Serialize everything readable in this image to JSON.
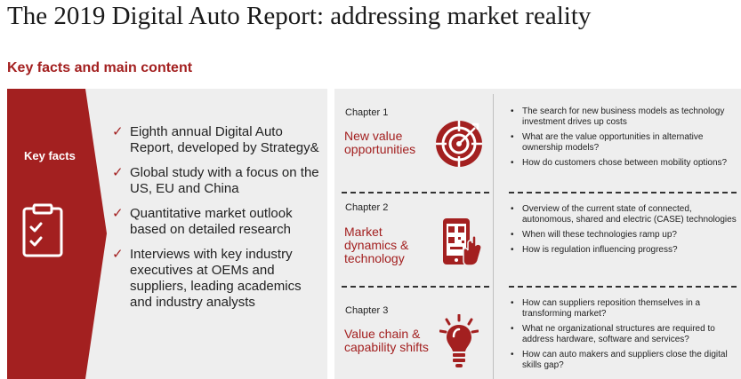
{
  "header": {
    "title": "The 2019 Digital Auto Report: addressing market reality",
    "subtitle": "Key facts and main content"
  },
  "key_facts": {
    "label": "Key facts",
    "icon": "clipboard-check-icon",
    "items": [
      "Eighth annual Digital Auto Report, developed by Strategy&",
      "Global study with a focus on the US, EU and China",
      "Quantitative market outlook based on detailed research",
      "Interviews with key industry executives at OEMs and suppliers, leading academics and industry analysts"
    ],
    "check_glyph": "✓"
  },
  "chapters": [
    {
      "label": "Chapter 1",
      "title": "New value opportunities",
      "icon": "target-icon",
      "bullets": [
        "The search for new business models as technology investment drives up costs",
        "What are the value opportunities in alternative ownership models?",
        "How do customers chose between mobility options?"
      ]
    },
    {
      "label": "Chapter 2",
      "title": "Market dynamics & technology",
      "icon": "smartphone-qr-icon",
      "bullets": [
        "Overview of the current state of connected, autonomous, shared and electric (CASE) technologies",
        "When will these technologies ramp up?",
        "How is regulation influencing progress?"
      ]
    },
    {
      "label": "Chapter 3",
      "title": "Value chain & capability shifts",
      "icon": "lightbulb-icon",
      "bullets": [
        "How can suppliers reposition themselves in a transforming market?",
        "What ne organizational structures are required to address hardware, software and services?",
        "How can auto makers and suppliers close the digital skills gap?"
      ]
    }
  ],
  "colors": {
    "accent": "#a32020",
    "panel": "#eeeeee"
  }
}
